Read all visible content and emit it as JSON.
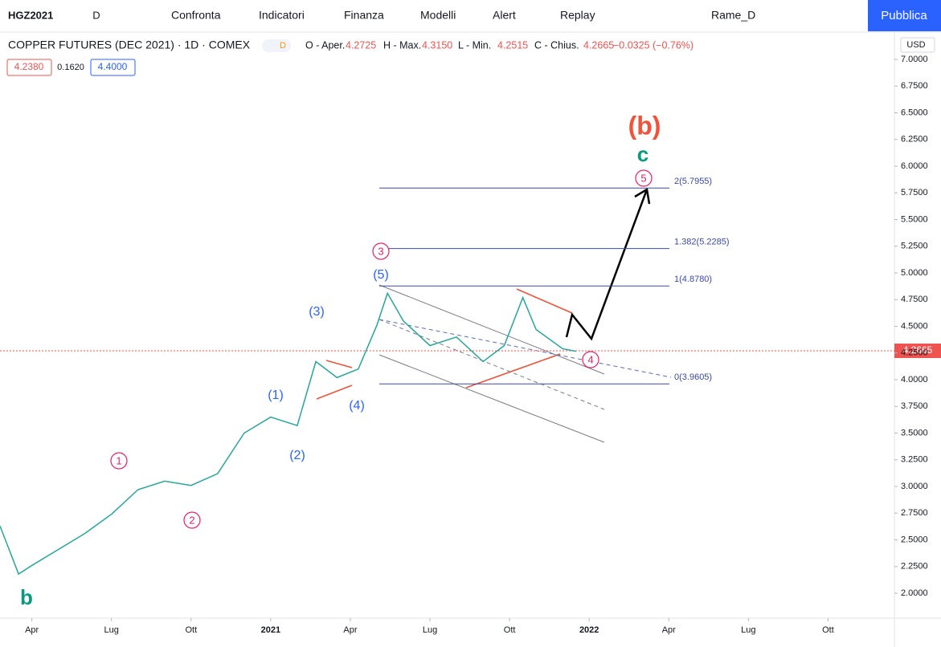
{
  "ui": {
    "symbol": "HGZ2021",
    "interval": "D",
    "toolbar": [
      "Confronta",
      "Indicatori",
      "Finanza",
      "Modelli",
      "Alert",
      "Replay"
    ],
    "layout_name": "Rame_D",
    "publish": "Pubblica",
    "legend": {
      "title": "COPPER FUTURES (DEC 2021) · 1D · COMEX",
      "badge": "D",
      "open_label": "O - Aper.",
      "open": "4.2725",
      "high_label": "H - Max.",
      "high": "4.3150",
      "low_label": "L - Min.",
      "low": "4.2515",
      "close_label": "C - Chius.",
      "close": "4.2665",
      "change": "−0.0325 (−0.76%)"
    },
    "boxes": [
      "4.2380",
      "0.1620",
      "4.4000"
    ],
    "currency": "USD",
    "last_price": "4.2665"
  },
  "chart_data": {
    "type": "line",
    "color": "#26a69a",
    "x": [
      -1.2,
      -0.5,
      0,
      1,
      2,
      3,
      4,
      5,
      6,
      7,
      8,
      9,
      10,
      10.7,
      11.5,
      12.3,
      13,
      13.4,
      14,
      15,
      16,
      17,
      17.8,
      18.5,
      19,
      20,
      20.5
    ],
    "values": [
      2.63,
      2.18,
      2.26,
      2.41,
      2.56,
      2.74,
      2.97,
      3.05,
      3.01,
      3.12,
      3.5,
      3.65,
      3.57,
      4.17,
      4.02,
      4.1,
      4.51,
      4.81,
      4.55,
      4.32,
      4.4,
      4.17,
      4.32,
      4.77,
      4.47,
      4.29,
      4.2665
    ],
    "xlim": [
      -1.2,
      32.5
    ],
    "xticks": [
      {
        "value": 0,
        "label": "Apr"
      },
      {
        "value": 3,
        "label": "Lug"
      },
      {
        "value": 6,
        "label": "Ott"
      },
      {
        "value": 9,
        "label": "2021"
      },
      {
        "value": 12,
        "label": "Apr"
      },
      {
        "value": 15,
        "label": "Lug"
      },
      {
        "value": 18,
        "label": "Ott"
      },
      {
        "value": 21,
        "label": "2022"
      },
      {
        "value": 24,
        "label": "Apr"
      },
      {
        "value": 27,
        "label": "Lug"
      },
      {
        "value": 30,
        "label": "Ott"
      }
    ],
    "ylim": [
      1.767,
      7.256
    ],
    "yticks": [
      {
        "value": 2,
        "label": "2.0000"
      },
      {
        "value": 2.25,
        "label": "2.2500"
      },
      {
        "value": 2.5,
        "label": "2.5000"
      },
      {
        "value": 2.75,
        "label": "2.7500"
      },
      {
        "value": 3,
        "label": "3.0000"
      },
      {
        "value": 3.25,
        "label": "3.2500"
      },
      {
        "value": 3.5,
        "label": "3.5000"
      },
      {
        "value": 3.75,
        "label": "3.7500"
      },
      {
        "value": 4,
        "label": "4.0000"
      },
      {
        "value": 4.25,
        "label": "4.2500"
      },
      {
        "value": 4.5,
        "label": "4.5000"
      },
      {
        "value": 4.75,
        "label": "4.7500"
      },
      {
        "value": 5,
        "label": "5.0000"
      },
      {
        "value": 5.25,
        "label": "5.2500"
      },
      {
        "value": 5.5,
        "label": "5.5000"
      },
      {
        "value": 5.75,
        "label": "5.7500"
      },
      {
        "value": 6,
        "label": "6.0000"
      },
      {
        "value": 6.25,
        "label": "6.2500"
      },
      {
        "value": 6.5,
        "label": "6.5000"
      },
      {
        "value": 6.75,
        "label": "6.7500"
      },
      {
        "value": 7,
        "label": "7.0000"
      }
    ],
    "fib_levels": [
      {
        "value": 5.7955,
        "label": "2(5.7955)"
      },
      {
        "value": 5.2285,
        "label": "1.382(5.2285)"
      },
      {
        "value": 4.878,
        "label": "1(4.8780)"
      },
      {
        "value": 3.9605,
        "label": "0(3.9605)"
      }
    ],
    "annotations": [
      "(b)",
      "c",
      "5",
      "3",
      "(5)",
      "(3)",
      "(1)",
      "(2)",
      "(4)",
      "1",
      "2",
      "4",
      "b"
    ]
  }
}
